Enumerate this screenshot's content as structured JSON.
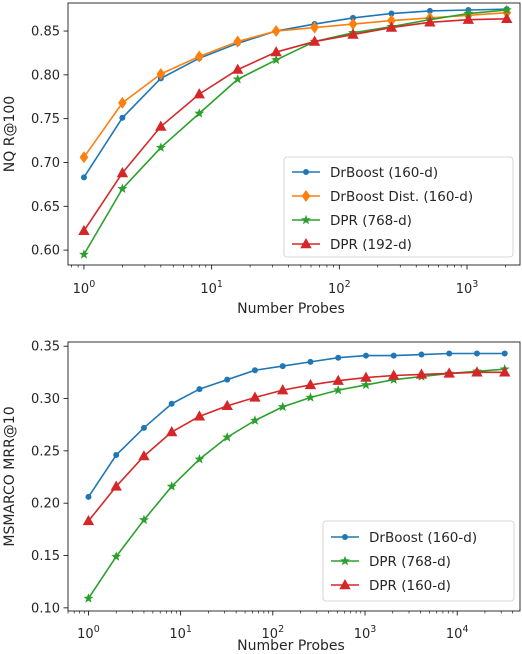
{
  "chart_data": [
    {
      "type": "line",
      "xlabel": "Number Probes",
      "ylabel": "NQ R@100",
      "xscale": "log",
      "xlim": [
        0.75,
        2600
      ],
      "ylim": [
        0.583,
        0.882
      ],
      "x_ticks": [
        1,
        10,
        100,
        1000
      ],
      "x_tick_labels": [
        {
          "base": "10",
          "exp": "0"
        },
        {
          "base": "10",
          "exp": "1"
        },
        {
          "base": "10",
          "exp": "2"
        },
        {
          "base": "10",
          "exp": "3"
        }
      ],
      "y_ticks": [
        "0.60",
        "0.65",
        "0.70",
        "0.75",
        "0.80",
        "0.85"
      ],
      "grid": false,
      "legend_position": "lower-right",
      "x": [
        1,
        2,
        4,
        8,
        16,
        32,
        64,
        128,
        256,
        512,
        1024,
        2048
      ],
      "series": [
        {
          "name": "DrBoost (160-d)",
          "color": "#1f77b4",
          "marker": "circle",
          "values": [
            0.683,
            0.751,
            0.796,
            0.819,
            0.836,
            0.85,
            0.858,
            0.865,
            0.87,
            0.873,
            0.874,
            0.875
          ]
        },
        {
          "name": "DrBoost Dist. (160-d)",
          "color": "#ff7f0e",
          "marker": "diamond",
          "values": [
            0.706,
            0.768,
            0.801,
            0.821,
            0.838,
            0.85,
            0.854,
            0.858,
            0.862,
            0.865,
            0.868,
            0.871
          ]
        },
        {
          "name": "DPR (768-d)",
          "color": "#2ca02c",
          "marker": "star",
          "values": [
            0.595,
            0.67,
            0.717,
            0.756,
            0.795,
            0.817,
            0.838,
            0.848,
            0.855,
            0.863,
            0.87,
            0.874
          ]
        },
        {
          "name": "DPR (192-d)",
          "color": "#d62728",
          "marker": "triangle",
          "values": [
            0.622,
            0.688,
            0.741,
            0.778,
            0.806,
            0.826,
            0.838,
            0.846,
            0.854,
            0.86,
            0.863,
            0.864
          ]
        }
      ]
    },
    {
      "type": "line",
      "xlabel": "Number Probes",
      "ylabel": "MSMARCO MRR@10",
      "xscale": "log",
      "xlim": [
        0.6,
        48000
      ],
      "ylim": [
        0.097,
        0.354
      ],
      "x_ticks": [
        1,
        10,
        100,
        1000,
        10000
      ],
      "x_tick_labels": [
        {
          "base": "10",
          "exp": "0"
        },
        {
          "base": "10",
          "exp": "1"
        },
        {
          "base": "10",
          "exp": "2"
        },
        {
          "base": "10",
          "exp": "3"
        },
        {
          "base": "10",
          "exp": "4"
        }
      ],
      "y_ticks": [
        "0.10",
        "0.15",
        "0.20",
        "0.25",
        "0.30",
        "0.35"
      ],
      "grid": false,
      "legend_position": "lower-right",
      "x": [
        1,
        2,
        4,
        8,
        16,
        32,
        64,
        128,
        256,
        512,
        1024,
        2048,
        4096,
        8192,
        16384,
        32768
      ],
      "series": [
        {
          "name": "DrBoost (160-d)",
          "color": "#1f77b4",
          "marker": "circle",
          "values": [
            0.206,
            0.246,
            0.272,
            0.295,
            0.309,
            0.318,
            0.327,
            0.331,
            0.335,
            0.339,
            0.341,
            0.341,
            0.342,
            0.343,
            0.343,
            0.343
          ]
        },
        {
          "name": "DPR (768-d)",
          "color": "#2ca02c",
          "marker": "star",
          "values": [
            0.109,
            0.149,
            0.184,
            0.216,
            0.242,
            0.263,
            0.279,
            0.292,
            0.301,
            0.308,
            0.313,
            0.318,
            0.321,
            0.324,
            0.326,
            0.328
          ]
        },
        {
          "name": "DPR (160-d)",
          "color": "#d62728",
          "marker": "triangle",
          "values": [
            0.183,
            0.216,
            0.245,
            0.268,
            0.283,
            0.293,
            0.301,
            0.308,
            0.313,
            0.317,
            0.32,
            0.322,
            0.323,
            0.324,
            0.325,
            0.325
          ]
        }
      ]
    }
  ]
}
